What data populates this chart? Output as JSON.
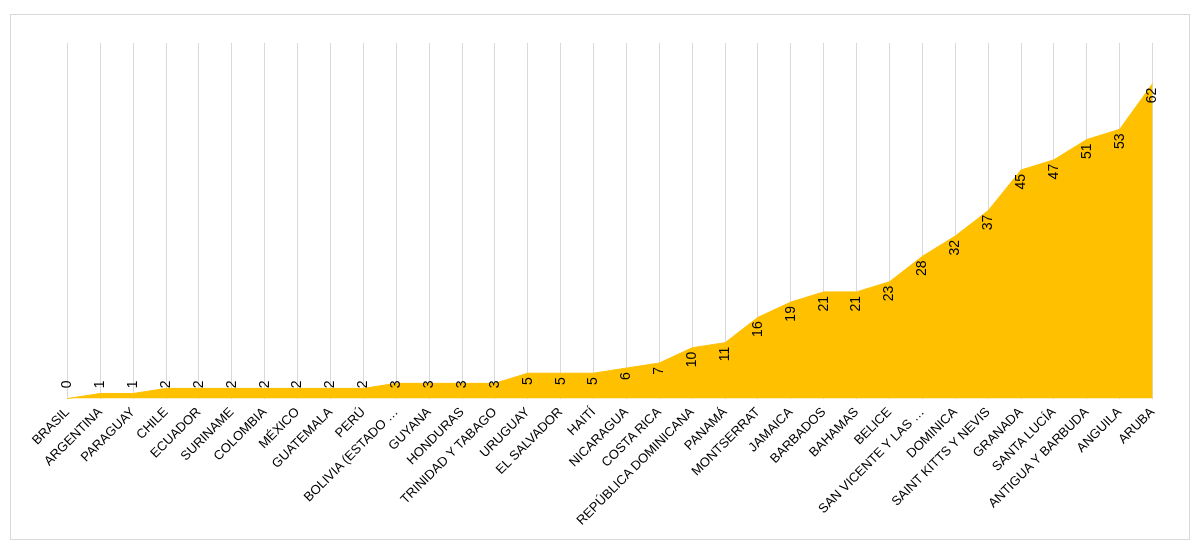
{
  "chart_data": {
    "type": "area",
    "categories": [
      "BRASIL",
      "ARGENTINA",
      "PARAGUAY",
      "CHILE",
      "ECUADOR",
      "SURINAME",
      "COLOMBIA",
      "MÉXICO",
      "GUATEMALA",
      "PERÚ",
      "BOLIVIA (ESTADO …",
      "GUYANA",
      "HONDURAS",
      "TRINIDAD Y TABAGO",
      "URUGUAY",
      "EL SALVADOR",
      "HAITÍ",
      "NICARAGUA",
      "COSTA RICA",
      "REPÚBLICA DOMINICANA",
      "PANAMÁ",
      "MONTSERRAT",
      "JAMAICA",
      "BARBADOS",
      "BAHAMAS",
      "BELICE",
      "SAN VICENTE Y LAS …",
      "DOMINICA",
      "SAINT KITTS Y NEVIS",
      "GRANADA",
      "SANTA LUCÍA",
      "ANTIGUA Y BARBUDA",
      "ANGUILA",
      "ARUBA"
    ],
    "values": [
      0,
      1,
      1,
      2,
      2,
      2,
      2,
      2,
      2,
      2,
      3,
      3,
      3,
      3,
      5,
      5,
      5,
      6,
      7,
      10,
      11,
      16,
      19,
      21,
      21,
      23,
      28,
      32,
      37,
      45,
      47,
      51,
      53,
      62
    ],
    "color": "#ffc000",
    "data_labels": true,
    "grid": "x",
    "legend": false
  }
}
